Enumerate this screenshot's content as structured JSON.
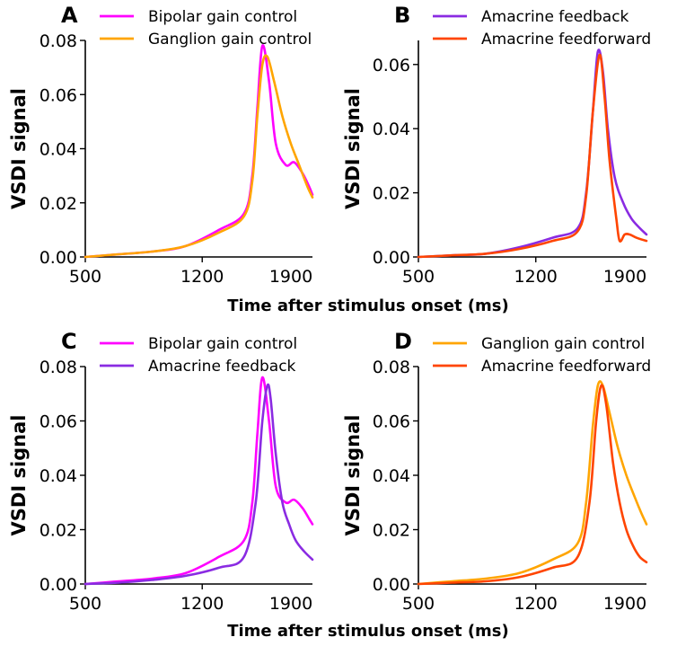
{
  "figure": {
    "xlabels": [
      "Time after stimulus onset (ms)",
      "Time after stimulus onset (ms)"
    ]
  },
  "colors": {
    "bipolar": "#ff00ff",
    "ganglion": "#ffa500",
    "amacrine_feedback": "#8a2be2",
    "amacrine_feedforward": "#ff4500"
  },
  "chart_data": [
    {
      "panel": "A",
      "type": "line",
      "ylabel": "VSDI signal",
      "xlim": [
        500,
        1860
      ],
      "ylim": [
        0,
        0.08
      ],
      "xticks": [
        500,
        1200,
        1900
      ],
      "yticks": [
        0.0,
        0.02,
        0.04,
        0.06,
        0.08
      ],
      "xtick_labels": [
        "500",
        "1200",
        "1900"
      ],
      "ytick_labels": [
        "0.00",
        "0.02",
        "0.04",
        "0.06",
        "0.08"
      ],
      "legend": "top-left",
      "series": [
        {
          "name": "Bipolar gain control",
          "color": "#ff00ff",
          "x": [
            500,
            700,
            900,
            1100,
            1300,
            1450,
            1500,
            1530,
            1560,
            1600,
            1640,
            1700,
            1750,
            1800,
            1840,
            1860
          ],
          "y": [
            0.0,
            0.001,
            0.002,
            0.004,
            0.01,
            0.016,
            0.03,
            0.055,
            0.078,
            0.065,
            0.042,
            0.034,
            0.035,
            0.031,
            0.026,
            0.023
          ]
        },
        {
          "name": "Ganglion gain control",
          "color": "#ffa500",
          "x": [
            500,
            700,
            900,
            1100,
            1300,
            1450,
            1500,
            1530,
            1560,
            1590,
            1630,
            1680,
            1730,
            1780,
            1830,
            1860
          ],
          "y": [
            0.0,
            0.001,
            0.002,
            0.004,
            0.009,
            0.015,
            0.028,
            0.052,
            0.071,
            0.074,
            0.065,
            0.052,
            0.042,
            0.034,
            0.026,
            0.022
          ]
        }
      ]
    },
    {
      "panel": "B",
      "type": "line",
      "ylabel": "VSDI signal",
      "xlim": [
        500,
        1860
      ],
      "ylim": [
        0,
        0.0675
      ],
      "xticks": [
        500,
        1200,
        1900
      ],
      "yticks": [
        0.0,
        0.02,
        0.04,
        0.06
      ],
      "xtick_labels": [
        "500",
        "1200",
        "1900"
      ],
      "ytick_labels": [
        "0.00",
        "0.02",
        "0.04",
        "0.06"
      ],
      "legend": "top-left",
      "series": [
        {
          "name": "Amacrine feedback",
          "color": "#8a2be2",
          "x": [
            500,
            700,
            900,
            1100,
            1300,
            1450,
            1500,
            1540,
            1570,
            1600,
            1630,
            1670,
            1720,
            1770,
            1820,
            1860
          ],
          "y": [
            0.0,
            0.0005,
            0.001,
            0.003,
            0.006,
            0.009,
            0.02,
            0.045,
            0.064,
            0.058,
            0.04,
            0.025,
            0.017,
            0.012,
            0.009,
            0.007
          ]
        },
        {
          "name": "Amacrine feedforward",
          "color": "#ff4500",
          "x": [
            500,
            700,
            900,
            1100,
            1300,
            1450,
            1500,
            1540,
            1580,
            1610,
            1640,
            1680,
            1700,
            1730,
            1760,
            1800,
            1860
          ],
          "y": [
            0.0,
            0.0005,
            0.001,
            0.0025,
            0.005,
            0.008,
            0.019,
            0.045,
            0.063,
            0.05,
            0.03,
            0.012,
            0.005,
            0.007,
            0.007,
            0.006,
            0.005
          ]
        }
      ]
    },
    {
      "panel": "C",
      "type": "line",
      "ylabel": "VSDI signal",
      "xlim": [
        500,
        1860
      ],
      "ylim": [
        0,
        0.08
      ],
      "xticks": [
        500,
        1200,
        1900
      ],
      "yticks": [
        0.0,
        0.02,
        0.04,
        0.06,
        0.08
      ],
      "xtick_labels": [
        "500",
        "1200",
        "1900"
      ],
      "ytick_labels": [
        "0.00",
        "0.02",
        "0.04",
        "0.06",
        "0.08"
      ],
      "legend": "top-left",
      "series": [
        {
          "name": "Bipolar gain control",
          "color": "#ff00ff",
          "x": [
            500,
            700,
            900,
            1100,
            1300,
            1450,
            1500,
            1530,
            1560,
            1600,
            1640,
            1700,
            1750,
            1800,
            1840,
            1860
          ],
          "y": [
            0.0,
            0.001,
            0.002,
            0.004,
            0.01,
            0.016,
            0.03,
            0.055,
            0.076,
            0.06,
            0.036,
            0.03,
            0.031,
            0.028,
            0.024,
            0.022
          ]
        },
        {
          "name": "Amacrine feedback",
          "color": "#8a2be2",
          "x": [
            500,
            700,
            900,
            1100,
            1300,
            1450,
            1520,
            1560,
            1590,
            1610,
            1640,
            1680,
            1720,
            1760,
            1810,
            1860
          ],
          "y": [
            0.0,
            0.0005,
            0.0015,
            0.003,
            0.006,
            0.01,
            0.03,
            0.06,
            0.073,
            0.068,
            0.048,
            0.03,
            0.022,
            0.016,
            0.012,
            0.009
          ]
        }
      ]
    },
    {
      "panel": "D",
      "type": "line",
      "ylabel": "VSDI signal",
      "xlim": [
        500,
        1860
      ],
      "ylim": [
        0,
        0.08
      ],
      "xticks": [
        500,
        1200,
        1900
      ],
      "yticks": [
        0.0,
        0.02,
        0.04,
        0.06,
        0.08
      ],
      "xtick_labels": [
        "500",
        "1200",
        "1900"
      ],
      "ytick_labels": [
        "0.00",
        "0.02",
        "0.04",
        "0.06",
        "0.08"
      ],
      "legend": "top-left",
      "series": [
        {
          "name": "Ganglion gain control",
          "color": "#ffa500",
          "x": [
            500,
            700,
            900,
            1100,
            1300,
            1450,
            1500,
            1540,
            1570,
            1600,
            1640,
            1690,
            1740,
            1790,
            1830,
            1860
          ],
          "y": [
            0.0,
            0.001,
            0.002,
            0.004,
            0.009,
            0.015,
            0.03,
            0.058,
            0.073,
            0.073,
            0.063,
            0.05,
            0.04,
            0.032,
            0.026,
            0.022
          ]
        },
        {
          "name": "Amacrine feedforward",
          "color": "#ff4500",
          "x": [
            500,
            700,
            900,
            1100,
            1300,
            1450,
            1520,
            1560,
            1590,
            1620,
            1660,
            1700,
            1740,
            1780,
            1820,
            1860
          ],
          "y": [
            0.0,
            0.0005,
            0.001,
            0.0025,
            0.006,
            0.01,
            0.03,
            0.06,
            0.073,
            0.066,
            0.045,
            0.03,
            0.02,
            0.014,
            0.01,
            0.008
          ]
        }
      ]
    }
  ]
}
